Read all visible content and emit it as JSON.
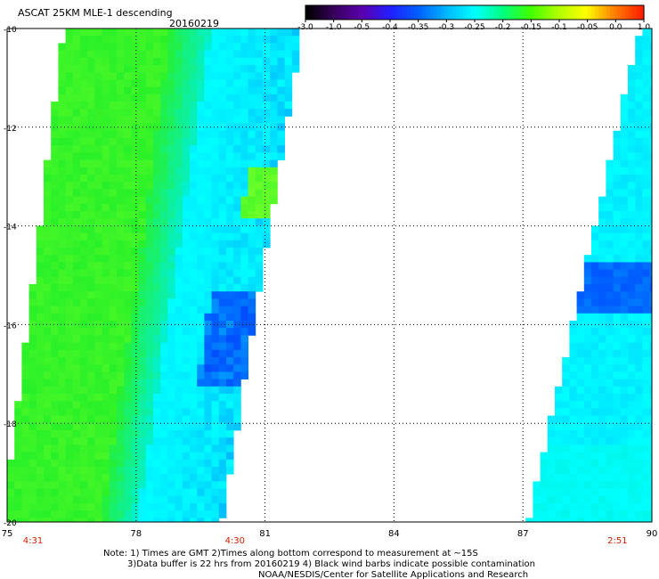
{
  "header": {
    "title": "ASCAT 25KM MLE-1 descending",
    "date": "20160219"
  },
  "colorbar": {
    "labels": [
      "-3.0",
      "-1.0",
      "-0.5",
      "-0.4",
      "-0.35",
      "-0.3",
      "-0.25",
      "-0.2",
      "-0.15",
      "-0.1",
      "-0.05",
      "0.0",
      "1.0"
    ],
    "colors": [
      "#000000",
      "#3a0060",
      "#5a00b0",
      "#2020ff",
      "#0060ff",
      "#00b8ff",
      "#00ffff",
      "#00ff80",
      "#40ff00",
      "#b0ff00",
      "#ffff00",
      "#ff8000",
      "#ff2000"
    ]
  },
  "map": {
    "lon_ticks": [
      "75",
      "78",
      "81",
      "84",
      "87",
      "90"
    ],
    "lat_ticks": [
      "-10",
      "-12",
      "-14",
      "-16",
      "-18",
      "-20"
    ],
    "lon_range": [
      75,
      90
    ],
    "lat_range": [
      -10,
      -20
    ],
    "time_labels": [
      {
        "text": "4:31",
        "lon": 75.6
      },
      {
        "text": "4:30",
        "lon": 80.3
      },
      {
        "text": "2:51",
        "lon": 89.2
      }
    ],
    "time_color": "#cc2200",
    "swaths": [
      {
        "name": "west-pass",
        "lon_top": [
          76.4,
          81.8
        ],
        "lon_bottom": [
          75.0,
          79.9
        ]
      },
      {
        "name": "east-pass",
        "lon_top": [
          89.8,
          90.0
        ],
        "lon_bottom": [
          87.2,
          90.0
        ]
      }
    ]
  },
  "notes": {
    "line1": "Note: 1) Times are GMT 2)Times along bottom correspond to measurement at ~15S",
    "line2": "3)Data buffer is 22 hrs from 20160219 4) Black wind barbs indicate possible contamination",
    "line3": "NOAA/NESDIS/Center for Satellite Applications and Research"
  }
}
